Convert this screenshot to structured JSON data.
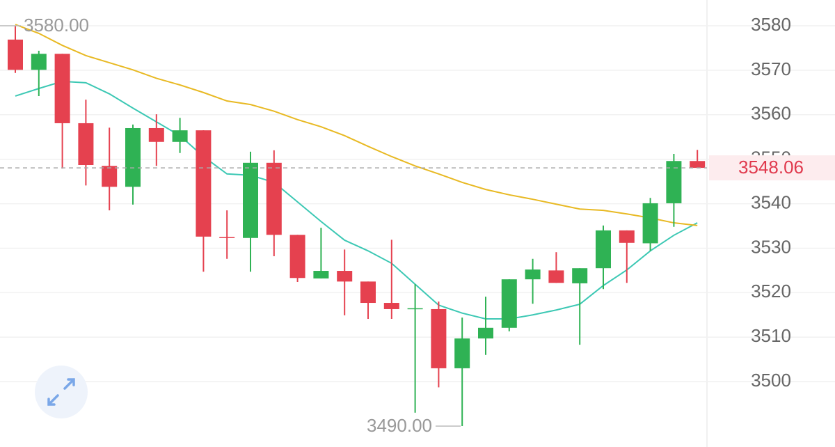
{
  "chart_data": {
    "type": "candlestick",
    "open": [
      3576.9,
      3570.1,
      3573.7,
      3558.1,
      3548.5,
      3543.8,
      3557.0,
      3553.9,
      3556.5,
      3532.5,
      3532.3,
      3549.2,
      3533.0,
      3523.2,
      3524.9,
      3522.5,
      3517.7,
      3516.4,
      3516.3,
      3503.0,
      3509.7,
      3512.1,
      3523.0,
      3525.0,
      3522.1,
      3525.5,
      3534.0,
      3531.1,
      3540.1,
      3549.6
    ],
    "high": [
      3580,
      3574.4,
      3573.7,
      3563.4,
      3557.1,
      3557.8,
      3560.1,
      3559.3,
      3556.5,
      3538.5,
      3551.7,
      3552.0,
      3533.0,
      3534.6,
      3529.7,
      3522.5,
      3531.9,
      3521.9,
      3518.0,
      3514.4,
      3519.1,
      3523.0,
      3527.6,
      3529.1,
      3525.5,
      3535.1,
      3534.0,
      3541.3,
      3551.2,
      3552.1
    ],
    "low": [
      3569.4,
      3564.2,
      3547.9,
      3544.1,
      3538.5,
      3539.8,
      3548.5,
      3551.4,
      3524.7,
      3527.6,
      3524.7,
      3528.2,
      3522.4,
      3523.2,
      3514.9,
      3514.1,
      3514.1,
      3493.0,
      3498.7,
      3490,
      3506.0,
      3511.3,
      3517.5,
      3522.2,
      3508.3,
      3520.8,
      3522.2,
      3529.4,
      3534.8,
      3548.06
    ],
    "close": [
      3570.1,
      3573.7,
      3558.1,
      3548.7,
      3543.8,
      3557.0,
      3553.9,
      3556.5,
      3532.6,
      3532.3,
      3549.2,
      3533.0,
      3523.3,
      3524.9,
      3522.5,
      3517.7,
      3516.3,
      3516.5,
      3503.0,
      3509.7,
      3512.1,
      3523.0,
      3525.2,
      3522.2,
      3525.5,
      3534.0,
      3531.2,
      3540.1,
      3549.6,
      3548.06
    ],
    "up_color": "#2fb254",
    "down_color": "#e5414f",
    "lines": [
      {
        "color": "#3cc8b4",
        "values": [
          3564.2,
          3565.9,
          3567.5,
          3567.2,
          3564.7,
          3561.5,
          3558.4,
          3555.3,
          3550.6,
          3546.7,
          3546.4,
          3544.8,
          3540.4,
          3536.0,
          3531.8,
          3529.4,
          3526.6,
          3521.9,
          3517.2,
          3515.4,
          3514.1,
          3514.1,
          3515.0,
          3516.1,
          3517.4,
          3521.6,
          3525.1,
          3529.4,
          3532.9,
          3535.7
        ]
      },
      {
        "color": "#e8b923",
        "values": [
          3580.3,
          3578.3,
          3575.6,
          3573.3,
          3571.7,
          3570.1,
          3568.2,
          3566.7,
          3565.0,
          3563.1,
          3562.3,
          3560.8,
          3558.9,
          3557.3,
          3555.3,
          3552.9,
          3550.6,
          3548.5,
          3546.7,
          3544.8,
          3543.2,
          3542.0,
          3541.0,
          3539.9,
          3538.8,
          3538.5,
          3537.7,
          3536.8,
          3535.7,
          3535.1
        ]
      }
    ],
    "ylim": [
      3485.3,
      3585.8
    ],
    "yticks": [
      3500,
      3510,
      3520,
      3530,
      3540,
      3550,
      3560,
      3570,
      3580
    ],
    "grid": true,
    "last_price": 3548.06,
    "annotations": [
      {
        "label": "3580.00",
        "value": 3580
      },
      {
        "label": "3490.00",
        "value": 3490
      }
    ]
  }
}
